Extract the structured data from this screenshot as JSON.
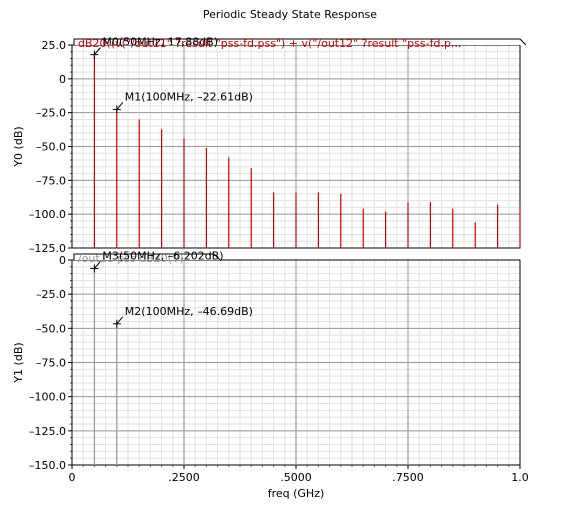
{
  "chart_data": {
    "type": "line",
    "title": "Periodic Steady State Response",
    "xlabel": "freq (GHz)",
    "xlim": [
      0,
      1.0
    ],
    "x_ticks": [
      "0",
      ".2500",
      ".5000",
      ".7500",
      "1.0"
    ],
    "panels": [
      {
        "ylabel": "Y0 (dB)",
        "ylim": [
          -125,
          25
        ],
        "y_ticks": [
          "25.0",
          "0",
          "-25.0",
          "-50.0",
          "-75.0",
          "-100.0",
          "-125.0"
        ],
        "y_tick_values": [
          25,
          0,
          -25,
          -50,
          -75,
          -100,
          -125
        ],
        "series": [
          {
            "name": "dB20((v(\"/out11\" ?result \"pss-fd.pss\") + v(\"/out12\" ?result \"pss-fd.p...",
            "color": "#cc0000",
            "x": [
              0.05,
              0.1,
              0.15,
              0.2,
              0.25,
              0.3,
              0.35,
              0.4,
              0.45,
              0.5,
              0.55,
              0.6,
              0.65,
              0.7,
              0.75,
              0.8,
              0.85,
              0.9,
              0.95,
              1.0
            ],
            "y": [
              17.88,
              -22.61,
              -30,
              -37,
              -44,
              -51,
              -58,
              -66,
              -84,
              -84,
              -84,
              -85,
              -96,
              -98,
              -91,
              -91,
              -96,
              -106,
              -93,
              -93
            ]
          }
        ],
        "markers": [
          {
            "label": "M0(50MHz, 17.88dB)",
            "x": 0.05,
            "y": 17.88
          },
          {
            "label": "M1(100MHz, -22.61dB)",
            "x": 0.1,
            "y": -22.61
          }
        ]
      },
      {
        "ylabel": "Y1 (dB)",
        "ylim": [
          -150,
          0
        ],
        "y_ticks": [
          "0",
          "-25.0",
          "-50.0",
          "-75.0",
          "-100.0",
          "-125.0",
          "-150.0"
        ],
        "y_tick_values": [
          0,
          -25,
          -50,
          -75,
          -100,
          -125,
          -150
        ],
        "series": [
          {
            "name": "/out11 pss dB20(V)",
            "color": "#999999",
            "x": [
              0.05,
              0.1,
              0.25,
              0.5,
              0.75
            ],
            "y": [
              -6.202,
              -46.69,
              -68,
              -105,
              -113
            ]
          }
        ],
        "markers": [
          {
            "label": "M3(50MHz, -6.202dB)",
            "x": 0.05,
            "y": -6.202
          },
          {
            "label": "M2(100MHz, -46.69dB)",
            "x": 0.1,
            "y": -46.69
          }
        ]
      }
    ],
    "grid": true
  }
}
